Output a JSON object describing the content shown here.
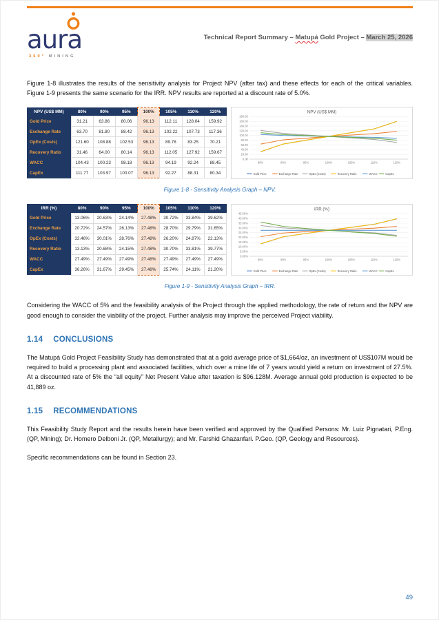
{
  "logo": {
    "brand": "aura",
    "tagline_degree": "360°",
    "tagline_word": "MINING"
  },
  "header": {
    "prefix": "Technical Report Summary – ",
    "project_misspelled": "Matupá",
    "middle": " Gold Project – ",
    "date": "March 25, 2026"
  },
  "paragraphs": {
    "intro": "Figure 1-8 illustrates the results of the sensitivity analysis for Project NPV (after tax) and these effects for each of the critical variables. Figure 1-9 presents the same scenario for the IRR. NPV results are reported at a discount rate of 5.0%.",
    "considering": "Considering the WACC of 5% and the feasibility analysis of the Project through the applied methodology, the rate of return and the NPV are good enough to consider the viability of the project. Further analysis may improve the perceived Project viability."
  },
  "figures": {
    "npv": {
      "caption": "Figure 1-8 - Sensitivity Analysis Graph – NPV.",
      "table": {
        "header": [
          "NPV (US$ MM)",
          "80%",
          "90%",
          "95%",
          "100%",
          "105%",
          "110%",
          "120%"
        ],
        "highlight_column": 4,
        "rows": [
          {
            "label": "Gold Price",
            "values": [
              "31.21",
              "63.86",
              "80.06",
              "96.13",
              "112.11",
              "128.04",
              "159.92"
            ]
          },
          {
            "label": "Exchange Rate",
            "values": [
              "63.70",
              "81.80",
              "88.42",
              "96.13",
              "102.22",
              "107.73",
              "117.36"
            ]
          },
          {
            "label": "OpEx (Costs)",
            "values": [
              "121.60",
              "108.88",
              "102.53",
              "96.13",
              "89.78",
              "83.25",
              "70.21"
            ]
          },
          {
            "label": "Recovery Ratio",
            "values": [
              "31.46",
              "64.00",
              "80.14",
              "96.13",
              "112.05",
              "127.92",
              "159.67"
            ]
          },
          {
            "label": "WACC",
            "values": [
              "104.43",
              "100.23",
              "98.18",
              "96.13",
              "94.19",
              "92.24",
              "88.45"
            ]
          },
          {
            "label": "CapEx",
            "values": [
              "111.77",
              "103.97",
              "100.07",
              "96.13",
              "92.27",
              "88.31",
              "80.34"
            ]
          }
        ]
      }
    },
    "irr": {
      "caption": "Figure 1-9 - Sensitivity Analysis Graph – IRR.",
      "table": {
        "header": [
          "IRR (%)",
          "80%",
          "90%",
          "95%",
          "100%",
          "105%",
          "110%",
          "120%"
        ],
        "highlight_column": 4,
        "rows": [
          {
            "label": "Gold Price",
            "values": [
              "13.06%",
              "20.63%",
              "24.14%",
              "27.48%",
              "30.72%",
              "33.84%",
              "39.62%"
            ]
          },
          {
            "label": "Exchange Rate",
            "values": [
              "20.72%",
              "24.57%",
              "26.13%",
              "27.48%",
              "28.70%",
              "29.79%",
              "31.65%"
            ]
          },
          {
            "label": "OpEx (Costs)",
            "values": [
              "32.46%",
              "30.01%",
              "28.76%",
              "27.48%",
              "26.20%",
              "24.87%",
              "22.13%"
            ]
          },
          {
            "label": "Recovery Ratio",
            "values": [
              "13.13%",
              "20.68%",
              "24.15%",
              "27.48%",
              "30.70%",
              "33.81%",
              "39.77%"
            ]
          },
          {
            "label": "WACC",
            "values": [
              "27.49%",
              "27.49%",
              "27.49%",
              "27.48%",
              "27.49%",
              "27.49%",
              "27.49%"
            ]
          },
          {
            "label": "CapEx",
            "values": [
              "36.26%",
              "31.67%",
              "29.45%",
              "27.48%",
              "25.74%",
              "24.11%",
              "21.20%"
            ]
          }
        ]
      }
    }
  },
  "chart_data": [
    {
      "type": "line",
      "title": "NPV (US$ MM)",
      "categories": [
        "80%",
        "90%",
        "95%",
        "100%",
        "105%",
        "110%",
        "120%"
      ],
      "series": [
        {
          "name": "Gold Price",
          "color": "#4472C4",
          "values": [
            31.21,
            63.86,
            80.06,
            96.13,
            112.11,
            128.04,
            159.92
          ]
        },
        {
          "name": "Exchange Rate",
          "color": "#ED7D31",
          "values": [
            63.7,
            81.8,
            88.42,
            96.13,
            102.22,
            107.73,
            117.36
          ]
        },
        {
          "name": "OpEx (Costs)",
          "color": "#A5A5A5",
          "values": [
            121.6,
            108.88,
            102.53,
            96.13,
            89.78,
            83.25,
            70.21
          ]
        },
        {
          "name": "Recovery Ratio",
          "color": "#FFC000",
          "values": [
            31.46,
            64.0,
            80.14,
            96.13,
            112.05,
            127.92,
            159.67
          ]
        },
        {
          "name": "WACC",
          "color": "#5B9BD5",
          "values": [
            104.43,
            100.23,
            98.18,
            96.13,
            94.19,
            92.24,
            88.45
          ]
        },
        {
          "name": "CapEx",
          "color": "#70AD47",
          "values": [
            111.77,
            103.97,
            100.07,
            96.13,
            92.27,
            88.31,
            80.34
          ]
        }
      ],
      "ylim": [
        0,
        180
      ],
      "ytick_values": [
        0,
        20,
        40,
        60,
        80,
        100,
        120,
        140,
        160,
        180
      ],
      "ytick_labels": [
        "0.00",
        "20.00",
        "40.00",
        "60.00",
        "80.00",
        "100.00",
        "120.00",
        "140.00",
        "160.00",
        "180.00"
      ],
      "grid": true,
      "legend_position": "bottom"
    },
    {
      "type": "line",
      "title": "IRR (%)",
      "categories": [
        "80%",
        "90%",
        "95%",
        "100%",
        "105%",
        "110%",
        "120%"
      ],
      "series": [
        {
          "name": "Gold Price",
          "color": "#4472C4",
          "values": [
            13.06,
            20.63,
            24.14,
            27.48,
            30.72,
            33.84,
            39.62
          ]
        },
        {
          "name": "Exchange Rate",
          "color": "#ED7D31",
          "values": [
            20.72,
            24.57,
            26.13,
            27.48,
            28.7,
            29.79,
            31.65
          ]
        },
        {
          "name": "OpEx (Costs)",
          "color": "#A5A5A5",
          "values": [
            32.46,
            30.01,
            28.76,
            27.48,
            26.2,
            24.87,
            22.13
          ]
        },
        {
          "name": "Recovery Ratio",
          "color": "#FFC000",
          "values": [
            13.13,
            20.68,
            24.15,
            27.48,
            30.7,
            33.81,
            39.77
          ]
        },
        {
          "name": "WACC",
          "color": "#5B9BD5",
          "values": [
            27.49,
            27.49,
            27.49,
            27.48,
            27.49,
            27.49,
            27.49
          ]
        },
        {
          "name": "CapEx",
          "color": "#70AD47",
          "values": [
            36.26,
            31.67,
            29.45,
            27.48,
            25.74,
            24.11,
            21.2
          ]
        }
      ],
      "ylim": [
        0,
        45
      ],
      "ytick_values": [
        0,
        5,
        10,
        15,
        20,
        25,
        30,
        35,
        40,
        45
      ],
      "ytick_labels": [
        "0.00%",
        "5.00%",
        "10.00%",
        "15.00%",
        "20.00%",
        "25.00%",
        "30.00%",
        "35.00%",
        "40.00%",
        "45.00%"
      ],
      "grid": true,
      "legend_position": "bottom"
    }
  ],
  "sections": {
    "conclusions": {
      "number": "1.14",
      "title": "CONCLUSIONS",
      "text": "The Matupá Gold Project Feasibility Study has demonstrated that at a gold average price of $1,664/oz, an investment of US$107M would be required to build a processing plant and associated facilities, which over a mine life of 7 years would yield a return on investment of 27.5%. At a discounted rate of 5% the “all equity” Net Present Value after taxation is $96.128M. Average annual gold production is expected to be 41,889 oz."
    },
    "recommendations": {
      "number": "1.15",
      "title": "RECOMMENDATIONS",
      "text": "This Feasibility Study Report and the results herein have been verified and approved by the Qualified Persons: Mr. Luiz Pignatari, P.Eng. (QP, Mining); Dr. Homero Delboni Jr. (QP, Metallurgy); and Mr. Farshid Ghazanfari. P.Geo. (QP, Geology and Resources).",
      "note": "Specific recommendations can be found in Section 23."
    }
  },
  "footer": {
    "page_number": "49"
  }
}
